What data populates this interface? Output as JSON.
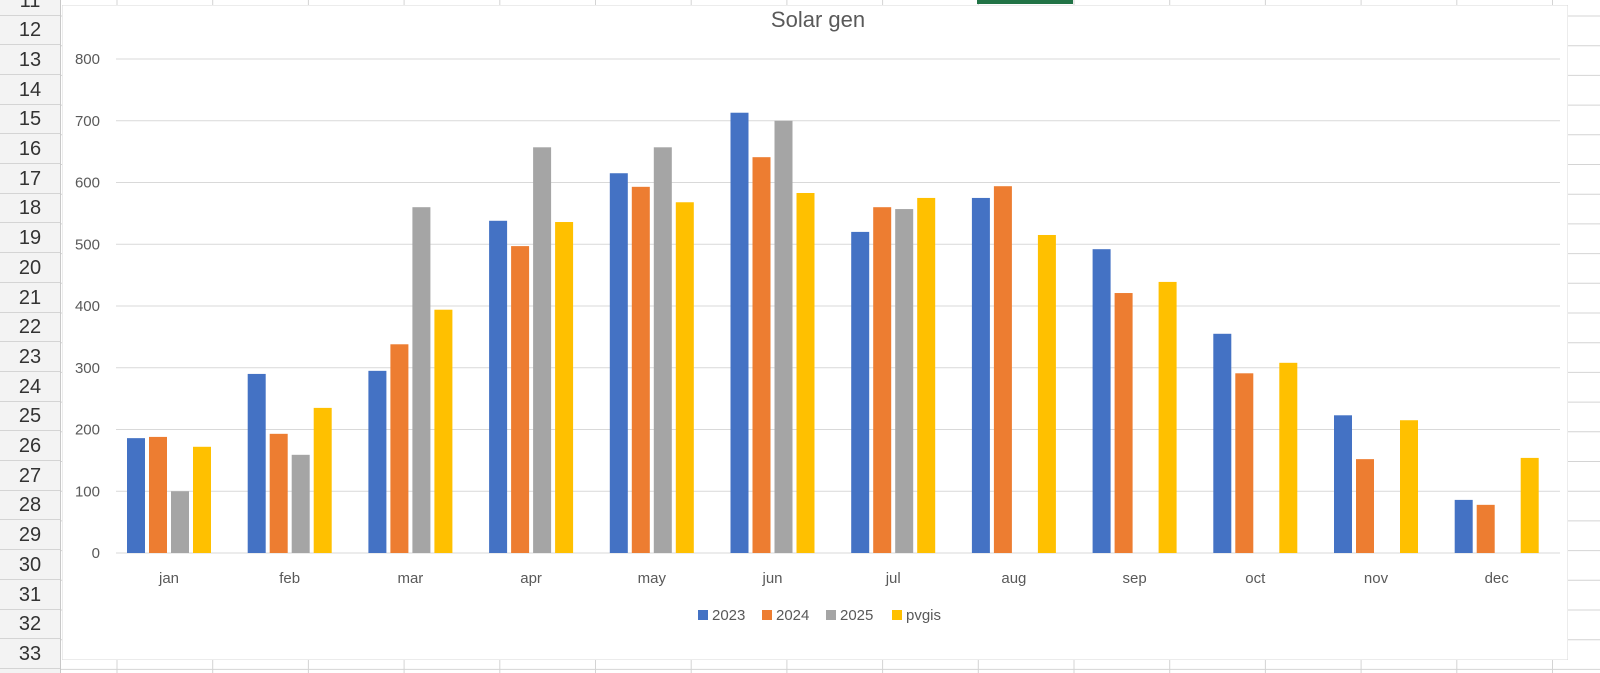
{
  "sheet": {
    "row_numbers": [
      "11",
      "12",
      "13",
      "14",
      "15",
      "16",
      "17",
      "18",
      "19",
      "20",
      "21",
      "22",
      "23",
      "24",
      "25",
      "26",
      "27",
      "28",
      "29",
      "30",
      "31",
      "32",
      "33"
    ]
  },
  "chart_data": {
    "type": "bar",
    "title": "Solar gen",
    "xlabel": "",
    "ylabel": "",
    "ylim": [
      0,
      800
    ],
    "yticks": [
      "0",
      "100",
      "200",
      "300",
      "400",
      "500",
      "600",
      "700",
      "800"
    ],
    "grid": true,
    "legend_position": "bottom",
    "categories": [
      "jan",
      "feb",
      "mar",
      "apr",
      "may",
      "jun",
      "jul",
      "aug",
      "sep",
      "oct",
      "nov",
      "dec"
    ],
    "series": [
      {
        "name": "2023",
        "color": "#4472c4",
        "values": [
          186,
          290,
          295,
          538,
          615,
          713,
          520,
          575,
          492,
          355,
          223,
          86
        ]
      },
      {
        "name": "2024",
        "color": "#ed7d31",
        "values": [
          188,
          193,
          338,
          497,
          593,
          641,
          560,
          594,
          421,
          291,
          152,
          78
        ]
      },
      {
        "name": "2025",
        "color": "#a5a5a5",
        "values": [
          100,
          159,
          560,
          657,
          657,
          700,
          557,
          null,
          null,
          null,
          null,
          null
        ]
      },
      {
        "name": "pvgis",
        "color": "#ffc000",
        "values": [
          172,
          235,
          394,
          536,
          568,
          583,
          575,
          515,
          439,
          308,
          215,
          154
        ]
      }
    ]
  }
}
